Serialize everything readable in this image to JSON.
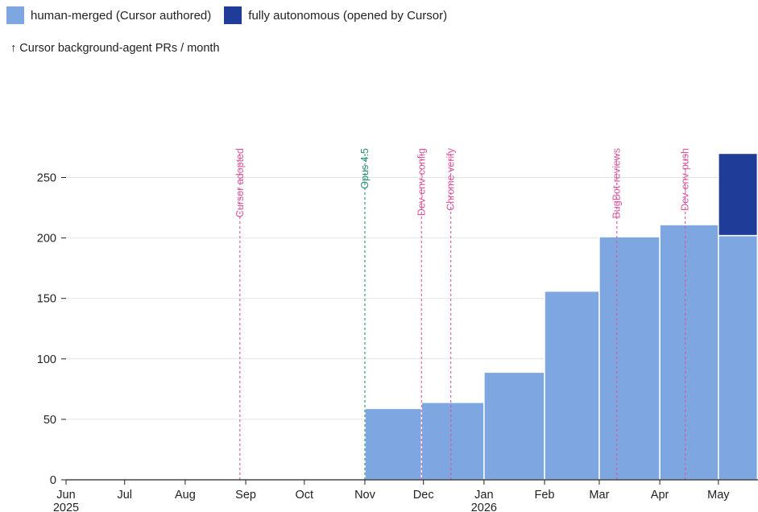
{
  "legend": {
    "items": [
      {
        "label": "human-merged (Cursor authored)",
        "color": "#7ea7e1"
      },
      {
        "label": "fully autonomous (opened by Cursor)",
        "color": "#1f3c99"
      }
    ]
  },
  "subtitle": "↑ Cursor background-agent PRs / month",
  "chart_data": {
    "type": "bar",
    "ylabel": "↑ Cursor background-agent PRs / month",
    "ylim": [
      0,
      275
    ],
    "yticks": [
      0,
      50,
      100,
      150,
      200,
      250
    ],
    "grid": true,
    "legend_position": "top-left",
    "x_axis": {
      "start": "2025-06-01",
      "end": "2026-05-21",
      "ticks": [
        {
          "date": "2025-06-01",
          "label": "Jun",
          "sublabel": "2025"
        },
        {
          "date": "2025-07-01",
          "label": "Jul",
          "sublabel": ""
        },
        {
          "date": "2025-08-01",
          "label": "Aug",
          "sublabel": ""
        },
        {
          "date": "2025-09-01",
          "label": "Sep",
          "sublabel": ""
        },
        {
          "date": "2025-10-01",
          "label": "Oct",
          "sublabel": ""
        },
        {
          "date": "2025-11-01",
          "label": "Nov",
          "sublabel": ""
        },
        {
          "date": "2025-12-01",
          "label": "Dec",
          "sublabel": ""
        },
        {
          "date": "2026-01-01",
          "label": "Jan",
          "sublabel": "2026"
        },
        {
          "date": "2026-02-01",
          "label": "Feb",
          "sublabel": ""
        },
        {
          "date": "2026-03-01",
          "label": "Mar",
          "sublabel": ""
        },
        {
          "date": "2026-04-01",
          "label": "Apr",
          "sublabel": ""
        },
        {
          "date": "2026-05-01",
          "label": "May",
          "sublabel": ""
        }
      ]
    },
    "series": [
      {
        "name": "human-merged (Cursor authored)",
        "color": "#7ea7e1",
        "bars": [
          {
            "start": "2025-11-01",
            "end": "2025-11-30",
            "value": 59
          },
          {
            "start": "2025-11-30",
            "end": "2026-01-01",
            "value": 64
          },
          {
            "start": "2026-01-01",
            "end": "2026-02-01",
            "value": 89
          },
          {
            "start": "2026-02-01",
            "end": "2026-03-01",
            "value": 156
          },
          {
            "start": "2026-03-01",
            "end": "2026-04-01",
            "value": 201
          },
          {
            "start": "2026-04-01",
            "end": "2026-05-01",
            "value": 211
          },
          {
            "start": "2026-05-01",
            "end": "2026-05-21",
            "value": 202
          }
        ]
      },
      {
        "name": "fully autonomous (opened by Cursor)",
        "color": "#1f3c99",
        "bars": [
          {
            "start": "2026-05-01",
            "end": "2026-05-21",
            "value": 68
          }
        ]
      }
    ],
    "annotations": [
      {
        "date": "2025-08-29",
        "label": "Cursor adopted",
        "color": "#d9559f"
      },
      {
        "date": "2025-11-01",
        "label": "Opus 4.5",
        "color": "#2a9070"
      },
      {
        "date": "2025-11-30",
        "label": "Dev-env-config",
        "color": "#d9559f"
      },
      {
        "date": "2025-12-15",
        "label": "Chrome verify",
        "color": "#d9559f"
      },
      {
        "date": "2026-03-10",
        "label": "BugBot-reviews",
        "color": "#d9559f"
      },
      {
        "date": "2026-04-14",
        "label": "Dev-env-push",
        "color": "#d9559f"
      }
    ]
  }
}
